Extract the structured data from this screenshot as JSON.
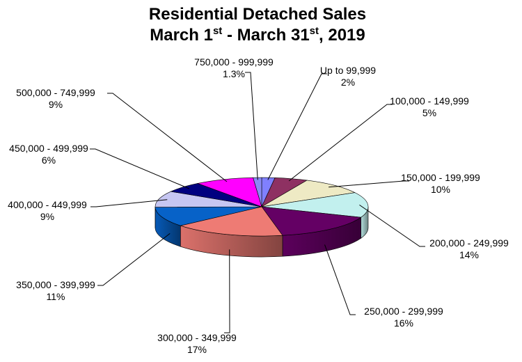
{
  "chart_data": {
    "type": "pie",
    "title_main": "Residential Detached Sales",
    "title_date": {
      "month_a": "March 1",
      "sup_a": "st",
      "dash": " - March 31",
      "sup_b": "st",
      "year": ", 2019"
    },
    "slices": [
      {
        "label": "Up to 99,999",
        "value": 2,
        "value_text": "2%",
        "color": "#8080FF"
      },
      {
        "label": "100,000 - 149,999",
        "value": 5,
        "value_text": "5%",
        "color": "#8E3162"
      },
      {
        "label": "150,000 - 199,999",
        "value": 10,
        "value_text": "10%",
        "color": "#EEEAC4"
      },
      {
        "label": "200,000 - 249,999",
        "value": 14,
        "value_text": "14%",
        "color": "#C2F0EE"
      },
      {
        "label": "250,000 - 299,999",
        "value": 16,
        "value_text": "16%",
        "color": "#640064"
      },
      {
        "label": "300,000 - 349,999",
        "value": 17,
        "value_text": "17%",
        "color": "#EE7B74"
      },
      {
        "label": "350,000 - 399,999",
        "value": 11,
        "value_text": "11%",
        "color": "#0762C8"
      },
      {
        "label": "400,000 - 449,999",
        "value": 9,
        "value_text": "9%",
        "color": "#C6C6F2"
      },
      {
        "label": "450,000 - 499,999",
        "value": 6,
        "value_text": "6%",
        "color": "#000080"
      },
      {
        "label": "500,000 - 749,999",
        "value": 9,
        "value_text": "9%",
        "color": "#FF00FF"
      },
      {
        "label": "750,000 - 999,999",
        "value": 1.3,
        "value_text": "1.3%",
        "color": "#8A8AF5"
      }
    ]
  }
}
